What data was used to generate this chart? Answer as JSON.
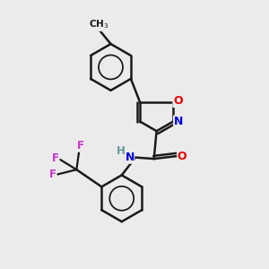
{
  "background_color": "#ebebeb",
  "bond_color": "#1a1a1a",
  "atom_colors": {
    "O": "#e60000",
    "N": "#0000e6",
    "F": "#cc33cc",
    "H": "#669999",
    "C": "#1a1a1a"
  },
  "figsize": [
    3.0,
    3.0
  ],
  "dpi": 100,
  "xlim": [
    0,
    10
  ],
  "ylim": [
    0,
    10
  ]
}
